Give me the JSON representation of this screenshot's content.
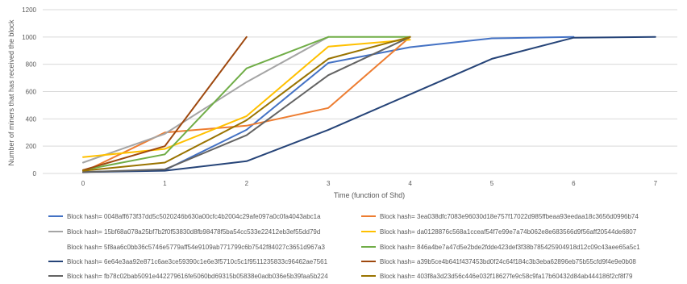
{
  "chart_data": {
    "type": "line",
    "xlabel": "Time (function of Shd)",
    "ylabel": "Number of miners that has received the block",
    "x": [
      0,
      1,
      2,
      3,
      4,
      5,
      6,
      7
    ],
    "xlim": [
      0,
      7
    ],
    "ylim": [
      0,
      1200
    ],
    "yticks": [
      0,
      200,
      400,
      600,
      800,
      1000,
      1200
    ],
    "grid": "horizontal",
    "legend_position": "bottom",
    "series": [
      {
        "name": "Block hash= 0048aff673f37dd5c5020246b630a00cfc4b2004c29afe097a0c0fa4043abc1a",
        "color": "#4472c4",
        "points": [
          [
            0,
            10
          ],
          [
            1,
            25
          ],
          [
            2,
            320
          ],
          [
            3,
            810
          ],
          [
            4,
            925
          ],
          [
            5,
            990
          ],
          [
            6,
            1000
          ]
        ]
      },
      {
        "name": "Block hash= 3ea038dfc7083e96030d18e757f17022d985ffbeaa93eedaa18c3656d0996b74",
        "color": "#ed7d31",
        "points": [
          [
            0,
            10
          ],
          [
            1,
            300
          ],
          [
            2,
            350
          ],
          [
            3,
            480
          ],
          [
            4,
            1000
          ]
        ]
      },
      {
        "name": "Block hash= 15bf68a078a25bf7b2f0f53830d8fb98478f5ba54cc533e22412eb3ef55dd79d",
        "color": "#a5a5a5",
        "points": [
          [
            0,
            80
          ],
          [
            1,
            290
          ],
          [
            2,
            670
          ],
          [
            3,
            1000
          ]
        ]
      },
      {
        "name": "Block hash= da0128876c568a1cceaf54f7e99e7a74b062e8e683566d9f56aff20544de6807",
        "color": "#ffc000",
        "points": [
          [
            0,
            120
          ],
          [
            1,
            180
          ],
          [
            2,
            420
          ],
          [
            3,
            930
          ],
          [
            4,
            980
          ]
        ]
      },
      {
        "name": "Block hash= 5f8aa6c0bb36c5746e5779aff54e9109ab771799c6b7542f84027c3651d967a3",
        "color": "#5b9bd5",
        "points": []
      },
      {
        "name": "Block hash= 846a4be7a47d5e2bde2fdde423def3f38b785425904918d12c09c43aee65a5c1",
        "color": "#70ad47",
        "points": [
          [
            0,
            25
          ],
          [
            1,
            140
          ],
          [
            2,
            770
          ],
          [
            3,
            1000
          ],
          [
            4,
            1000
          ]
        ]
      },
      {
        "name": "Block hash= 6e64e3aa92e871c6ae3ce59390c1e6e3f5710c5c1f9511235833c96462ae7561",
        "color": "#264478",
        "points": [
          [
            0,
            10
          ],
          [
            1,
            20
          ],
          [
            2,
            90
          ],
          [
            3,
            320
          ],
          [
            4,
            580
          ],
          [
            5,
            840
          ],
          [
            6,
            995
          ],
          [
            7,
            1000
          ]
        ]
      },
      {
        "name": "Block hash= a39b5ce4b641f437453bd0f24c64f184c3b3eba62896eb75b55cfd9f4e9e0b08",
        "color": "#9e480e",
        "points": [
          [
            0,
            25
          ],
          [
            1,
            200
          ],
          [
            2,
            1000
          ]
        ]
      },
      {
        "name": "Block hash= fb78c02bab5091e442279616fe5060bd69315b05838e0adb036e5b39faa5b224",
        "color": "#636363",
        "points": [
          [
            0,
            10
          ],
          [
            1,
            30
          ],
          [
            2,
            280
          ],
          [
            3,
            720
          ],
          [
            4,
            1000
          ]
        ]
      },
      {
        "name": "Block hash= 403f8a3d23d56c446e032f18627fe9c58c9fa17b60432d84ab444186f2cf8f79",
        "color": "#997300",
        "points": [
          [
            0,
            20
          ],
          [
            1,
            80
          ],
          [
            2,
            390
          ],
          [
            3,
            840
          ],
          [
            4,
            1000
          ]
        ]
      }
    ]
  }
}
